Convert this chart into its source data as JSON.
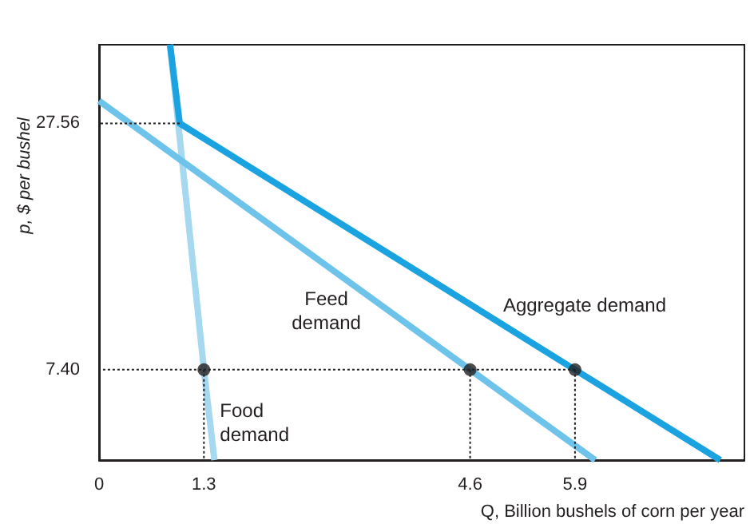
{
  "chart_data": {
    "type": "line",
    "xlabel": "Q, Billion bushels of corn per year",
    "ylabel": "p, $ per bushel",
    "xlim": [
      0,
      8
    ],
    "ylim": [
      0,
      34
    ],
    "xticks": [
      0,
      1.3,
      4.6,
      5.9
    ],
    "yticks": [
      {
        "value": 7.4,
        "label": "7.40"
      },
      27.56
    ],
    "grid": false,
    "legend": false,
    "marker": "none",
    "series": [
      {
        "type": "line",
        "color": "#231f20",
        "line_style": "dotted",
        "x": [
          5.9,
          0
        ],
        "values": [
          7.4,
          7.4
        ]
      },
      {
        "type": "line",
        "color": "#231f20",
        "line_style": "dotted",
        "x": [
          1,
          0
        ],
        "values": [
          27.56,
          27.56
        ]
      },
      {
        "type": "line",
        "color": "#231f20",
        "line_style": "dotted",
        "x": [
          1.3,
          1.3
        ],
        "values": [
          7.4,
          0
        ]
      },
      {
        "type": "line",
        "color": "#231f20",
        "line_style": "dotted",
        "x": [
          4.6,
          4.6
        ],
        "values": [
          7.4,
          0
        ]
      },
      {
        "type": "line",
        "color": "#231f20",
        "line_style": "dotted",
        "x": [
          5.9,
          5.9
        ],
        "values": [
          7.4,
          0
        ]
      },
      {
        "name": "Food demand",
        "color": "#a6d8f0",
        "line_style": "solid",
        "x": [
          0.88,
          1.3,
          1.43
        ],
        "values": [
          34,
          7.4,
          0
        ]
      },
      {
        "name": "Feed demand",
        "color": "#6ec3ea",
        "line_style": "solid",
        "x": [
          0,
          4.6,
          6.15
        ],
        "values": [
          29.4,
          7.4,
          0
        ]
      },
      {
        "name": "Aggregate demand",
        "color": "#1aa3e0",
        "line_style": "solid",
        "x": [
          0.88,
          1,
          5.9,
          7.7
        ],
        "values": [
          34,
          27.56,
          7.4,
          0
        ]
      },
      {
        "type": "scatter",
        "color": "#231f20",
        "marker": "circle",
        "x": [
          1.3,
          4.6,
          5.9
        ],
        "values": [
          7.4,
          7.4,
          7.4
        ]
      }
    ]
  }
}
